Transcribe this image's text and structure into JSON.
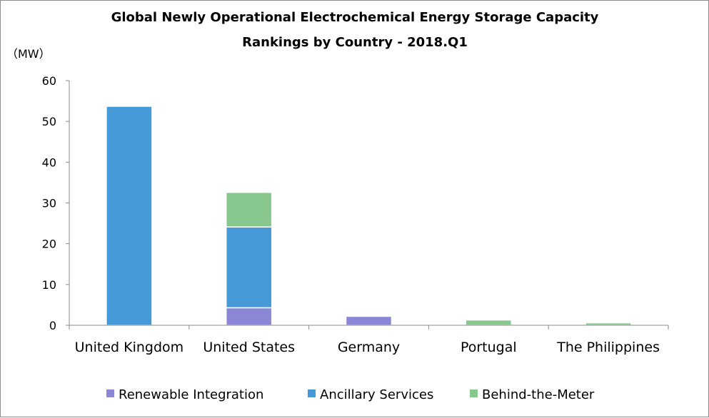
{
  "chart_data": {
    "type": "bar",
    "stacked": true,
    "title_lines": [
      "Global Newly Operational Electrochemical Energy Storage Capacity",
      "Rankings by Country - 2018.Q1"
    ],
    "unit_label": "（MW）",
    "ylim": [
      0,
      60
    ],
    "yticks": [
      0,
      10,
      20,
      30,
      40,
      50,
      60
    ],
    "grid": false,
    "legend_position": "bottom",
    "categories": [
      "United Kingdom",
      "United States",
      "Germany",
      "Portugal",
      "The Philippines"
    ],
    "series": [
      {
        "name": "Renewable Integration",
        "color": "#8b87d6",
        "values": [
          0,
          4.3,
          2.2,
          0,
          0
        ]
      },
      {
        "name": "Ancillary Services",
        "color": "#4499d6",
        "values": [
          53.7,
          19.8,
          0,
          0,
          0
        ]
      },
      {
        "name": "Behind-the-Meter",
        "color": "#88c88f",
        "values": [
          0,
          8.5,
          0,
          1.3,
          0.6
        ]
      }
    ]
  }
}
